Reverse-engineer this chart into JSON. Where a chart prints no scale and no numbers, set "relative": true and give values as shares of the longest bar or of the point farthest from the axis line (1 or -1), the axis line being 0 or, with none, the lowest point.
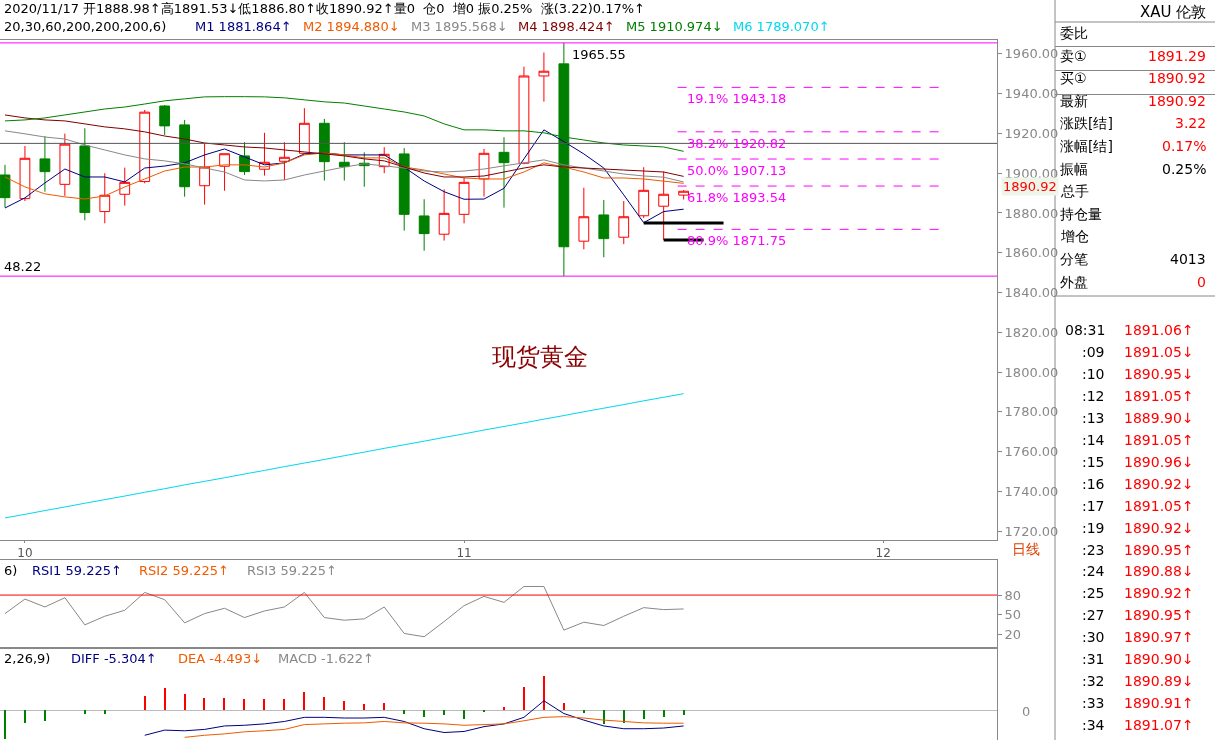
{
  "chart_data": [
    {
      "type": "candlestick",
      "title": "2020/11/17 开1888.98↑高1891.53↓低1886.80↑收1890.92↑量0  仓0  增0 振0.25%  涨(3.22)0.17%↑",
      "categories": [
        null,
        "10",
        null,
        null,
        null,
        null,
        null,
        null,
        null,
        null,
        null,
        null,
        null,
        null,
        null,
        null,
        null,
        null,
        null,
        null,
        null,
        null,
        null,
        "11",
        null,
        null,
        null,
        null,
        null,
        null,
        null,
        null,
        null,
        null,
        null,
        null,
        null,
        null,
        null,
        null,
        null,
        null,
        null,
        null,
        "12",
        null,
        null,
        null,
        null,
        null
      ],
      "ohlc": [
        [
          1899.1,
          1904.2,
          1882.7,
          1887.7
        ],
        [
          1887.2,
          1913.7,
          1886.0,
          1907.5
        ],
        [
          1907.2,
          1918.6,
          1890.7,
          1900.8
        ],
        [
          1894.4,
          1919.9,
          1888.6,
          1914.6
        ],
        [
          1913.7,
          1922.6,
          1876.3,
          1880.2
        ],
        [
          1880.7,
          1900.0,
          1874.8,
          1888.9
        ],
        [
          1889.4,
          1902.8,
          1883.7,
          1895.4
        ],
        [
          1895.8,
          1931.8,
          1894.9,
          1930.7
        ],
        [
          1933.8,
          1934.3,
          1919.2,
          1923.8
        ],
        [
          1924.3,
          1926.8,
          1888.2,
          1893.2
        ],
        [
          1893.7,
          1914.7,
          1884.2,
          1903.1
        ],
        [
          1903.5,
          1909.8,
          1891.2,
          1909.8
        ],
        [
          1908.7,
          1915.6,
          1899.1,
          1900.8
        ],
        [
          1902.0,
          1920.3,
          1898.8,
          1905.5
        ],
        [
          1906.0,
          1915.6,
          1896.6,
          1908.0
        ],
        [
          1910.0,
          1932.7,
          1910.0,
          1925.1
        ],
        [
          1925.1,
          1927.3,
          1896.3,
          1905.8
        ],
        [
          1905.5,
          1915.6,
          1896.3,
          1903.3
        ],
        [
          1905.0,
          1910.5,
          1893.2,
          1903.8
        ],
        [
          1903.3,
          1913.1,
          1900.0,
          1909.5
        ],
        [
          1909.7,
          1912.6,
          1871.1,
          1879.3
        ],
        [
          1878.5,
          1886.9,
          1861.0,
          1869.6
        ],
        [
          1869.3,
          1891.9,
          1866.1,
          1879.8
        ],
        [
          1879.3,
          1897.8,
          1874.8,
          1895.4
        ],
        [
          1897.1,
          1912.2,
          1888.2,
          1910.0
        ],
        [
          1910.5,
          1918.1,
          1882.7,
          1905.3
        ],
        [
          1905.0,
          1953.6,
          1904.5,
          1948.9
        ],
        [
          1948.9,
          1960.7,
          1936.0,
          1951.3
        ],
        [
          1955.0,
          1965.55,
          1848.22,
          1863.0
        ],
        [
          1865.8,
          1892.7,
          1861.7,
          1878.1
        ],
        [
          1879.0,
          1886.5,
          1857.7,
          1867.1
        ],
        [
          1867.8,
          1886.0,
          1864.3,
          1878.1
        ],
        [
          1878.6,
          1903.0,
          1877.5,
          1891.4
        ],
        [
          1883.4,
          1900.8,
          1866.4,
          1889.4
        ],
        [
          1888.98,
          1891.53,
          1886.8,
          1890.92
        ],
        null,
        null,
        null,
        null,
        null,
        null,
        null,
        null,
        null,
        null,
        null,
        null,
        null,
        null,
        null
      ],
      "series": [
        {
          "type": "line",
          "name": "M1 1881.864↑",
          "color": "#000080",
          "values": [
            1882.5,
            1887.6,
            1895.1,
            1902.1,
            1898.1,
            1898.1,
            1895.6,
            1902.6,
            1903.6,
            1905.2,
            1909.2,
            1912.2,
            1908.2,
            1904.2,
            1905.2,
            1909.7,
            1910.2,
            1909.2,
            1909.2,
            1909.2,
            1903.0,
            1896.1,
            1890.7,
            1886.9,
            1887.0,
            1892.4,
            1907.2,
            1921.8,
            1915.9,
            1909.7,
            1902.6,
            1889.1,
            1875.1,
            1880.7,
            1881.9,
            null,
            null,
            null,
            null,
            null,
            null,
            null,
            null,
            null,
            null,
            null,
            null,
            null,
            null,
            null
          ]
        },
        {
          "type": "line",
          "name": "M2 1894.880↓",
          "color": "#f05a00",
          "values": [
            1898.1,
            1893.1,
            1889.6,
            1888.1,
            1887.0,
            1888.6,
            1893.1,
            1897.1,
            1901.1,
            1903.1,
            1903.1,
            1904.2,
            1904.2,
            1903.1,
            1905.2,
            1909.2,
            1910.2,
            1909.2,
            1907.7,
            1907.7,
            1903.1,
            1901.6,
            1899.6,
            1897.6,
            1897.1,
            1897.1,
            1900.6,
            1905.2,
            1903.1,
            1900.6,
            1897.6,
            1897.6,
            1897.1,
            1896.0,
            1894.9,
            null,
            null,
            null,
            null,
            null,
            null,
            null,
            null,
            null,
            null,
            null,
            null,
            null,
            null,
            null
          ]
        },
        {
          "type": "line",
          "name": "M3 1895.568↓",
          "color": "#888888",
          "values": [
            1921.3,
            1919.8,
            1918.2,
            1917.2,
            1914.2,
            1911.7,
            1909.2,
            1907.2,
            1906.2,
            1904.7,
            1902.6,
            1900.6,
            1896.6,
            1896.1,
            1896.6,
            1899.1,
            1901.1,
            1903.1,
            1904.7,
            1903.7,
            1902.6,
            1901.1,
            1900.6,
            1901.1,
            1902.1,
            1903.7,
            1905.2,
            1906.7,
            1904.2,
            1902.6,
            1901.1,
            1899.6,
            1898.6,
            1898.0,
            1895.6,
            null,
            null,
            null,
            null,
            null,
            null,
            null,
            null,
            null,
            null,
            null,
            null,
            null,
            null,
            null
          ]
        },
        {
          "type": "line",
          "name": "M4 1898.424↑",
          "color": "#800000",
          "values": [
            1929.3,
            1927.8,
            1926.8,
            1926.3,
            1924.8,
            1923.3,
            1922.3,
            1920.8,
            1918.7,
            1917.2,
            1915.2,
            1914.2,
            1913.2,
            1912.7,
            1911.7,
            1910.7,
            1909.7,
            1908.7,
            1907.2,
            1906.2,
            1903.1,
            1900.1,
            1898.1,
            1898.1,
            1898.6,
            1900.6,
            1902.6,
            1904.2,
            1903.1,
            1902.6,
            1902.1,
            1901.6,
            1901.1,
            1900.6,
            1898.4,
            null,
            null,
            null,
            null,
            null,
            null,
            null,
            null,
            null,
            null,
            null,
            null,
            null,
            null,
            null
          ]
        },
        {
          "type": "line",
          "name": "M5 1910.974↓",
          "color": "#008000",
          "values": [
            1926.3,
            1926.8,
            1927.8,
            1929.3,
            1930.8,
            1932.3,
            1933.3,
            1934.8,
            1936.4,
            1937.4,
            1938.4,
            1938.5,
            1938.5,
            1938.4,
            1937.9,
            1936.9,
            1935.9,
            1935.3,
            1933.8,
            1932.3,
            1930.8,
            1928.8,
            1924.8,
            1921.8,
            1921.8,
            1921.3,
            1921.3,
            1920.3,
            1918.2,
            1916.7,
            1915.2,
            1914.2,
            1913.7,
            1913.2,
            1911.0,
            null,
            null,
            null,
            null,
            null,
            null,
            null,
            null,
            null,
            null,
            null,
            null,
            null,
            null,
            null
          ]
        },
        {
          "type": "line",
          "name": "M6 1789.070↑",
          "color": "#00d8ee",
          "values": [
            1726.6,
            1728.4,
            1730.3,
            1732.1,
            1734.0,
            1735.8,
            1737.6,
            1739.5,
            1741.3,
            1743.2,
            1745.0,
            1746.8,
            1748.7,
            1750.5,
            1752.4,
            1754.2,
            1756.0,
            1757.9,
            1759.7,
            1761.6,
            1763.4,
            1765.2,
            1767.1,
            1768.9,
            1770.8,
            1772.6,
            1774.4,
            1776.3,
            1778.1,
            1780.0,
            1781.8,
            1783.6,
            1785.5,
            1787.3,
            1789.1,
            null,
            null,
            null,
            null,
            null,
            null,
            null,
            null,
            null,
            null,
            null,
            null,
            null,
            null,
            null
          ]
        },
        {
          "type": "line",
          "color": "#000000",
          "values": [
            null,
            null,
            null,
            null,
            null,
            null,
            null,
            null,
            null,
            null,
            null,
            null,
            null,
            null,
            null,
            null,
            null,
            null,
            null,
            null,
            null,
            null,
            null,
            null,
            null,
            null,
            null,
            null,
            null,
            null,
            null,
            null,
            1875.0,
            1875.0,
            1875.0,
            1875.0,
            1875.0,
            null,
            null,
            null,
            null,
            null,
            null,
            null,
            null,
            null,
            null,
            null,
            null,
            null
          ]
        },
        {
          "type": "line",
          "color": "#000000",
          "values": [
            null,
            null,
            null,
            null,
            null,
            null,
            null,
            null,
            null,
            null,
            null,
            null,
            null,
            null,
            null,
            null,
            null,
            null,
            null,
            null,
            null,
            null,
            null,
            null,
            null,
            null,
            null,
            null,
            null,
            null,
            null,
            null,
            null,
            1866.4,
            1866.4,
            1866.4,
            null,
            null,
            null,
            null,
            null,
            null,
            null,
            null,
            null,
            null,
            null,
            null,
            null,
            null
          ]
        }
      ],
      "ylim": [
        1715.5,
        1967
      ],
      "yticks": [
        {
          "value": 1720,
          "label": "1720.00"
        },
        {
          "value": 1740,
          "label": "1740.00"
        },
        {
          "value": 1760,
          "label": "1760.00"
        },
        {
          "value": 1780,
          "label": "1780.00"
        },
        {
          "value": 1800,
          "label": "1800.00"
        },
        {
          "value": 1820,
          "label": "1820.00"
        },
        {
          "value": 1840,
          "label": "1840.00"
        },
        {
          "value": 1860,
          "label": "1860.00"
        },
        {
          "value": 1880,
          "label": "1880.00"
        },
        {
          "value": 1900,
          "label": "1900.00"
        },
        {
          "value": 1920,
          "label": "1920.00"
        },
        {
          "value": 1940,
          "label": "1940.00"
        },
        {
          "value": 1960,
          "label": "1960.00"
        }
      ],
      "ref_lines": [
        {
          "axis": "y",
          "value": 1965.55,
          "color": "#ff00ff"
        },
        {
          "axis": "y",
          "value": 1943.18,
          "label": "19.1% 1943.18",
          "color": "#ff00ff",
          "line_style": "dashed"
        },
        {
          "axis": "y",
          "value": 1920.82,
          "label": "38.2% 1920.82",
          "color": "#ff00ff",
          "line_style": "dashed"
        },
        {
          "axis": "y",
          "value": 1907.13,
          "label": "50.0% 1907.13",
          "color": "#ff00ff",
          "line_style": "dashed"
        },
        {
          "axis": "y",
          "value": 1893.54,
          "label": "61.8% 1893.54",
          "color": "#ff00ff",
          "line_style": "dashed"
        },
        {
          "axis": "y",
          "value": 1871.75,
          "label": "80.9% 1871.75",
          "color": "#ff00ff",
          "line_style": "dashed"
        },
        {
          "axis": "y",
          "value": 1848.22,
          "color": "#ff00ff"
        },
        {
          "axis": "y",
          "value": 1915.0,
          "color": "#555555"
        }
      ],
      "annotations": [
        "20,30,60,200,200,200,6)",
        {
          "text": "1965.55",
          "y": 1965.55
        },
        {
          "text": "48.22",
          "y": 1848.22
        },
        "现货黄金",
        "日线",
        "1890.92"
      ]
    },
    {
      "type": "line",
      "categories": [
        null,
        "10",
        null,
        null,
        null,
        null,
        null,
        null,
        null,
        null,
        null,
        null,
        null,
        null,
        null,
        null,
        null,
        null,
        null,
        null,
        null,
        null,
        null,
        "11",
        null,
        null,
        null,
        null,
        null,
        null,
        null,
        null,
        null,
        null,
        null,
        null,
        null,
        null,
        null,
        null,
        null,
        null,
        null,
        null,
        "12",
        null,
        null,
        null,
        null,
        null
      ],
      "tick_labels": "y",
      "series": [
        {
          "name": "RSI1 59.225↑",
          "color": "#000080",
          "values": [
            null,
            null,
            null,
            null,
            null,
            null,
            null,
            null,
            null,
            null,
            null,
            null,
            null,
            null,
            null,
            null,
            null,
            null,
            null,
            null,
            null,
            null,
            null,
            null,
            null,
            null,
            null,
            null,
            null,
            null,
            null,
            null,
            null,
            null,
            null,
            null,
            null,
            null,
            null,
            null,
            null,
            null,
            null,
            null,
            null,
            null,
            null,
            null,
            null,
            null
          ]
        },
        {
          "name": "RSI2 59.225↑",
          "color": "#f05a00",
          "values": [
            null,
            null,
            null,
            null,
            null,
            null,
            null,
            null,
            null,
            null,
            null,
            null,
            null,
            null,
            null,
            null,
            null,
            null,
            null,
            null,
            null,
            null,
            null,
            null,
            null,
            null,
            null,
            null,
            null,
            null,
            null,
            null,
            null,
            null,
            null,
            null,
            null,
            null,
            null,
            null,
            null,
            null,
            null,
            null,
            null,
            null,
            null,
            null,
            null,
            null
          ]
        },
        {
          "name": "RSI3 59.225↑",
          "color": "#888888",
          "values": [
            52,
            74,
            62,
            76,
            35,
            48,
            57,
            84,
            73,
            38,
            52,
            60,
            46,
            56,
            62,
            84,
            46,
            42,
            44,
            62,
            22,
            17,
            40,
            64,
            78,
            69,
            93,
            93,
            27,
            39,
            34,
            48,
            61,
            58,
            59,
            null,
            null,
            null,
            null,
            null,
            null,
            null,
            null,
            null,
            null,
            null,
            null,
            null,
            null,
            null
          ]
        }
      ],
      "ylim": [
        0,
        133
      ],
      "yticks": [
        20,
        50,
        80
      ],
      "ref_lines": [
        {
          "axis": "y",
          "value": 80,
          "color": "#ff0000"
        }
      ],
      "annotations": [
        "6)"
      ]
    },
    {
      "type": "bar",
      "relative": true,
      "tick_labels": false,
      "categories": [
        null,
        "10",
        null,
        null,
        null,
        null,
        null,
        null,
        null,
        null,
        null,
        null,
        null,
        null,
        null,
        null,
        null,
        null,
        null,
        null,
        null,
        null,
        null,
        "11",
        null,
        null,
        null,
        null,
        null,
        null,
        null,
        null,
        null,
        null,
        null,
        null,
        null,
        null,
        null,
        null,
        null,
        null,
        null,
        null,
        "12",
        null,
        null,
        null,
        null,
        null
      ],
      "series": [
        {
          "type": "line",
          "name": "DIFF -5.304↑",
          "color": "#000080",
          "values": [
            null,
            null,
            null,
            null,
            null,
            null,
            null,
            -0.73,
            -0.58,
            -0.6,
            -0.56,
            -0.46,
            -0.44,
            -0.4,
            -0.33,
            -0.21,
            -0.21,
            -0.23,
            -0.23,
            -0.21,
            -0.33,
            -0.54,
            -0.65,
            -0.62,
            -0.48,
            -0.4,
            -0.21,
            0.27,
            -0.1,
            -0.29,
            -0.46,
            -0.54,
            -0.54,
            -0.52,
            -0.46,
            null,
            null,
            null,
            null,
            null,
            null,
            null,
            null,
            null,
            null,
            null,
            null,
            null,
            null,
            null
          ]
        },
        {
          "type": "line",
          "name": "DEA -4.493↓",
          "color": "#f05a00",
          "values": [
            null,
            null,
            null,
            null,
            null,
            null,
            null,
            null,
            null,
            -0.79,
            -0.73,
            -0.69,
            -0.63,
            -0.6,
            -0.56,
            -0.42,
            -0.4,
            -0.38,
            -0.37,
            -0.33,
            -0.37,
            -0.38,
            -0.4,
            -0.44,
            -0.42,
            -0.4,
            -0.31,
            -0.21,
            -0.19,
            -0.23,
            -0.29,
            -0.33,
            -0.37,
            -0.38,
            -0.38,
            null,
            null,
            null,
            null,
            null,
            null,
            null,
            null,
            null,
            null,
            null,
            null,
            null,
            null,
            null
          ]
        },
        {
          "name": "MACD -1.622↑",
          "color": "#888888",
          "values": [
            -0.85,
            -0.38,
            -0.31,
            null,
            -0.12,
            -0.12,
            null,
            0.42,
            0.65,
            0.46,
            0.35,
            0.35,
            0.31,
            0.31,
            0.31,
            0.52,
            0.38,
            0.27,
            0.17,
            0.21,
            -0.1,
            -0.21,
            -0.13,
            -0.27,
            -0.04,
            0.1,
            0.67,
            1,
            0.21,
            -0.08,
            -0.4,
            -0.37,
            -0.27,
            -0.21,
            -0.15,
            null,
            null,
            null,
            null,
            null,
            null,
            null,
            null,
            null,
            null,
            null,
            null,
            null,
            null,
            null
          ],
          "colors": [
            "#008000",
            "#008000",
            "#008000",
            null,
            "#008000",
            "#008000",
            null,
            "#ff0000",
            "#ff0000",
            "#ff0000",
            "#ff0000",
            "#ff0000",
            "#ff0000",
            "#ff0000",
            "#ff0000",
            "#ff0000",
            "#ff0000",
            "#ff0000",
            "#ff0000",
            "#ff0000",
            "#008000",
            "#008000",
            "#008000",
            "#008000",
            "#008000",
            "#ff0000",
            "#ff0000",
            "#ff0000",
            "#ff0000",
            "#008000",
            "#008000",
            "#008000",
            "#008000",
            "#008000",
            "#008000",
            null,
            null,
            null,
            null,
            null,
            null,
            null,
            null,
            null,
            null,
            null,
            null,
            null,
            null,
            null
          ]
        }
      ],
      "annotations": [
        "2,26,9)",
        "0"
      ]
    },
    {
      "type": "other",
      "title": "XAU 伦敦",
      "categories": [
        "委比",
        "卖①",
        "买①",
        "最新",
        "涨跌[结]",
        "涨幅[结]",
        "振幅",
        "总手",
        "持仓量",
        "增仓",
        "分笔",
        "外盘"
      ],
      "value_labels": [
        null,
        "1891.29",
        "1890.92",
        "1890.92",
        "3.22",
        "0.17%",
        "0.25%",
        null,
        null,
        null,
        "4013",
        "0"
      ],
      "colors": [
        null,
        "#ff0000",
        "#ff0000",
        "#ff0000",
        "#ff0000",
        "#ff0000",
        "#000000",
        null,
        null,
        null,
        "#000000",
        "#ff0000"
      ]
    },
    {
      "type": "other",
      "color": "#ff0000",
      "categories": [
        "08:31",
        ":09",
        ":10",
        ":12",
        ":13",
        ":14",
        ":15",
        ":16",
        ":17",
        ":19",
        ":23",
        ":24",
        ":25",
        ":27",
        ":30",
        ":31",
        ":32",
        ":33",
        ":34"
      ],
      "value_labels": [
        "1891.06↑",
        "1891.05↓",
        "1890.95↓",
        "1891.05↑",
        "1889.90↓",
        "1891.05↑",
        "1890.96↓",
        "1890.92↓",
        "1891.05↑",
        "1890.92↓",
        "1890.95↑",
        "1890.88↓",
        "1890.92↑",
        "1890.95↑",
        "1890.97↑",
        "1890.90↓",
        "1890.89↓",
        "1890.91↑",
        "1891.07↑"
      ]
    }
  ]
}
